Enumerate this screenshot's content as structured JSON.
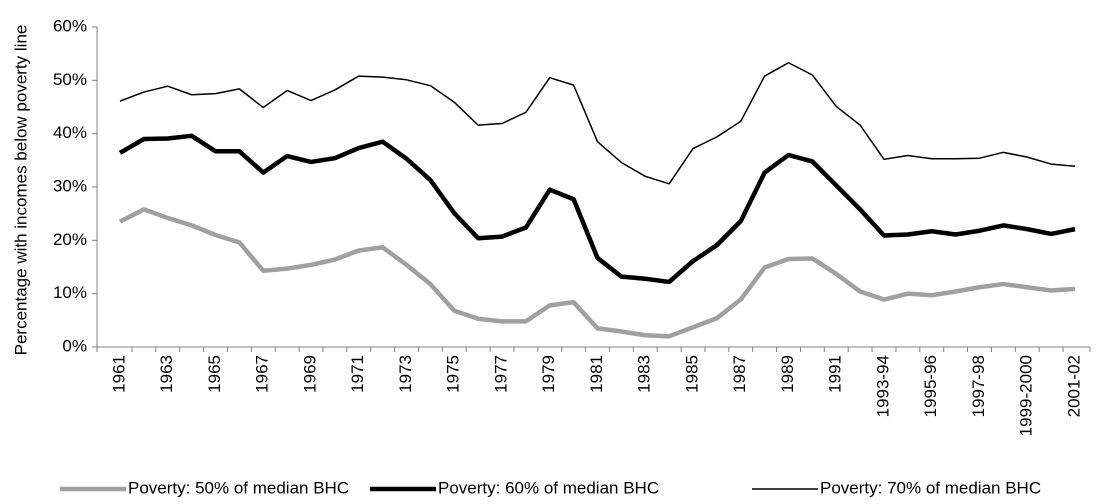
{
  "chart_data": {
    "type": "line",
    "y_label": "Percentage with incomes below poverty line",
    "categories": [
      "1961",
      null,
      "1963",
      null,
      "1965",
      null,
      "1967",
      null,
      "1969",
      null,
      "1971",
      null,
      "1973",
      null,
      "1975",
      null,
      "1977",
      null,
      "1979",
      null,
      "1981",
      null,
      "1983",
      null,
      "1985",
      null,
      "1987",
      null,
      "1989",
      null,
      "1991",
      null,
      "1993-94",
      null,
      "1995-96",
      null,
      "1997-98",
      null,
      "1999-2000",
      null,
      "2001-02"
    ],
    "series": [
      {
        "name": "Poverty: 50% of median BHC",
        "color": "#a0a0a0",
        "width": 4.5,
        "values": [
          23.5,
          25.8,
          24.2,
          22.8,
          21.0,
          19.6,
          14.3,
          14.7,
          15.4,
          16.4,
          18.1,
          18.7,
          15.4,
          11.8,
          6.8,
          5.3,
          4.8,
          4.8,
          7.8,
          8.4,
          3.5,
          2.9,
          2.2,
          2.0,
          3.7,
          5.4,
          8.9,
          14.9,
          16.5,
          16.6,
          13.7,
          10.4,
          8.9,
          10.0,
          9.7,
          10.4,
          11.2,
          11.8,
          11.2,
          10.6,
          10.9
        ]
      },
      {
        "name": "Poverty: 60% of median BHC",
        "color": "#000000",
        "width": 4.5,
        "values": [
          36.4,
          39.0,
          39.1,
          39.6,
          36.7,
          36.7,
          32.7,
          35.8,
          34.7,
          35.4,
          37.3,
          38.5,
          35.3,
          31.3,
          25.1,
          20.4,
          20.7,
          22.4,
          29.5,
          27.7,
          16.7,
          13.2,
          12.8,
          12.2,
          16.1,
          19.1,
          23.6,
          32.7,
          36.0,
          34.8,
          30.3,
          25.8,
          20.9,
          21.1,
          21.7,
          21.1,
          21.8,
          22.8,
          22.1,
          21.2,
          22.1
        ]
      },
      {
        "name": "Poverty: 70% of median BHC",
        "color": "#000000",
        "width": 1.5,
        "values": [
          46.1,
          47.8,
          48.9,
          47.3,
          47.5,
          48.4,
          44.9,
          48.1,
          46.2,
          48.2,
          50.8,
          50.6,
          50.1,
          49.0,
          45.9,
          41.6,
          41.9,
          44.0,
          50.5,
          49.1,
          38.5,
          34.6,
          32.0,
          30.6,
          37.2,
          39.4,
          42.3,
          50.8,
          53.3,
          51.0,
          45.1,
          41.6,
          35.2,
          35.9,
          35.3,
          35.3,
          35.4,
          36.5,
          35.6,
          34.3,
          33.9
        ]
      }
    ],
    "ylim": [
      0,
      60
    ],
    "yticks": [
      {
        "value": 0,
        "label": "0%"
      },
      {
        "value": 10,
        "label": "10%"
      },
      {
        "value": 20,
        "label": "20%"
      },
      {
        "value": 30,
        "label": "30%"
      },
      {
        "value": 40,
        "label": "40%"
      },
      {
        "value": 50,
        "label": "50%"
      },
      {
        "value": 60,
        "label": "60%"
      }
    ],
    "grid": false,
    "legend": "bottom"
  }
}
